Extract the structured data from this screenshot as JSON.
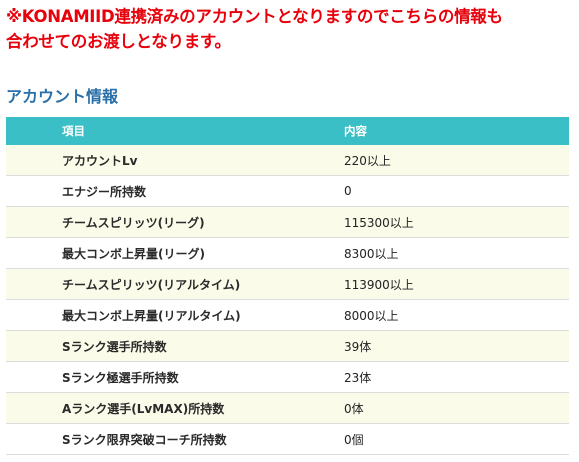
{
  "notice": {
    "line1": "※KONAMIID連携済みのアカウントとなりますのでこちらの情報も",
    "line2": "合わせてのお渡しとなります。"
  },
  "section": {
    "title": "アカウント情報"
  },
  "table": {
    "headers": {
      "item": "項目",
      "content": "内容"
    },
    "rows": [
      {
        "item": "アカウントLv",
        "content": "220以上"
      },
      {
        "item": "エナジー所持数",
        "content": "0"
      },
      {
        "item": "チームスピリッツ(リーグ)",
        "content": "115300以上"
      },
      {
        "item": "最大コンボ上昇量(リーグ)",
        "content": "8300以上"
      },
      {
        "item": "チームスピリッツ(リアルタイム)",
        "content": "113900以上"
      },
      {
        "item": "最大コンボ上昇量(リアルタイム)",
        "content": "8000以上"
      },
      {
        "item": "Sランク選手所持数",
        "content": "39体"
      },
      {
        "item": "Sランク極選手所持数",
        "content": "23体"
      },
      {
        "item": "Aランク選手(LvMAX)所持数",
        "content": "0体"
      },
      {
        "item": "Sランク限界突破コーチ所持数",
        "content": "0個"
      }
    ]
  },
  "colors": {
    "notice": "#e8000b",
    "section_title": "#2a6fa8",
    "header_bg": "#3bbfc6",
    "row_alt_bg": "#fbfbea"
  }
}
